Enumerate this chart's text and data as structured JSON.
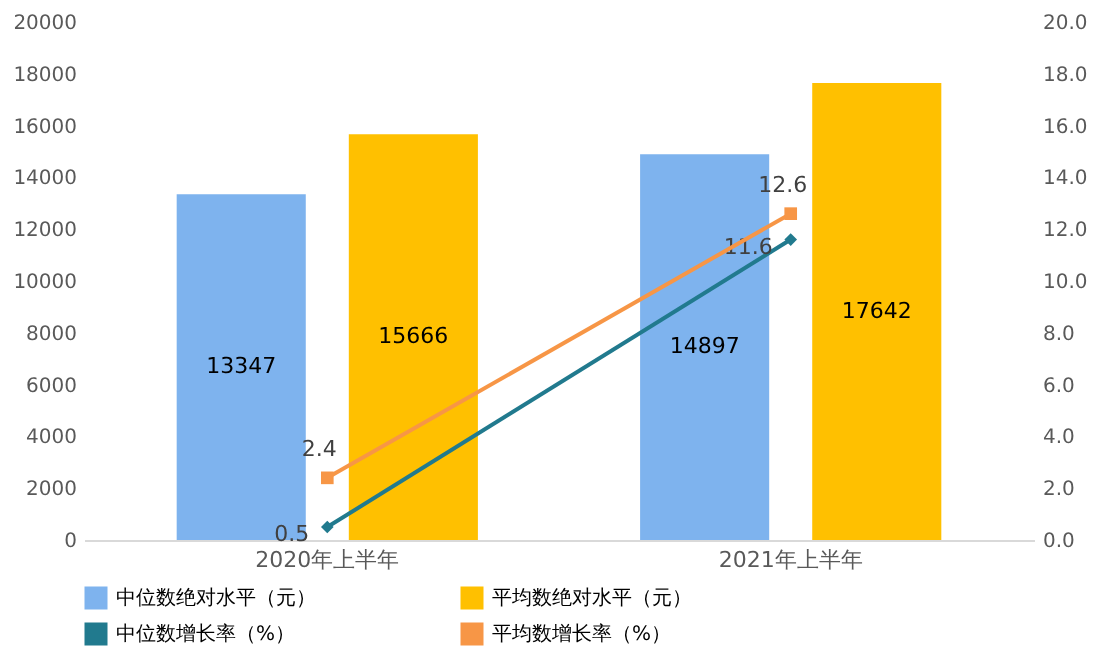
{
  "chart_data": {
    "type": "bar",
    "categories": [
      "2020年上半年",
      "2021年上半年"
    ],
    "series": [
      {
        "name": "中位数绝对水平（元）",
        "color": "#7eb3ee",
        "values": [
          13347,
          14897
        ]
      },
      {
        "name": "平均数绝对水平（元）",
        "color": "#ffc000",
        "values": [
          15666,
          17642
        ]
      },
      {
        "name": "中位数增长率（%）",
        "type": "line",
        "axis": "y2",
        "marker": "diamond",
        "color": "#217a8e",
        "values": [
          0.5,
          11.6
        ]
      },
      {
        "name": "平均数增长率（%）",
        "type": "line",
        "axis": "y2",
        "marker": "square",
        "color": "#f79646",
        "values": [
          2.4,
          12.6
        ]
      }
    ],
    "ylim": [
      0,
      20000
    ],
    "yticks": [
      0,
      2000,
      4000,
      6000,
      8000,
      10000,
      12000,
      14000,
      16000,
      18000,
      20000
    ],
    "y2lim": [
      0,
      20
    ],
    "y2ticks": [
      {
        "value": 0,
        "label": "0.0"
      },
      {
        "value": 2,
        "label": "2.0"
      },
      {
        "value": 4,
        "label": "4.0"
      },
      {
        "value": 6,
        "label": "6.0"
      },
      {
        "value": 8,
        "label": "8.0"
      },
      {
        "value": 10,
        "label": "10.0"
      },
      {
        "value": 12,
        "label": "12.0"
      },
      {
        "value": 14,
        "label": "14.0"
      },
      {
        "value": 16,
        "label": "16.0"
      },
      {
        "value": 18,
        "label": "18.0"
      },
      {
        "value": 20,
        "label": "20.0"
      }
    ],
    "data_labels": true,
    "grid": false,
    "legend": "bottom"
  }
}
